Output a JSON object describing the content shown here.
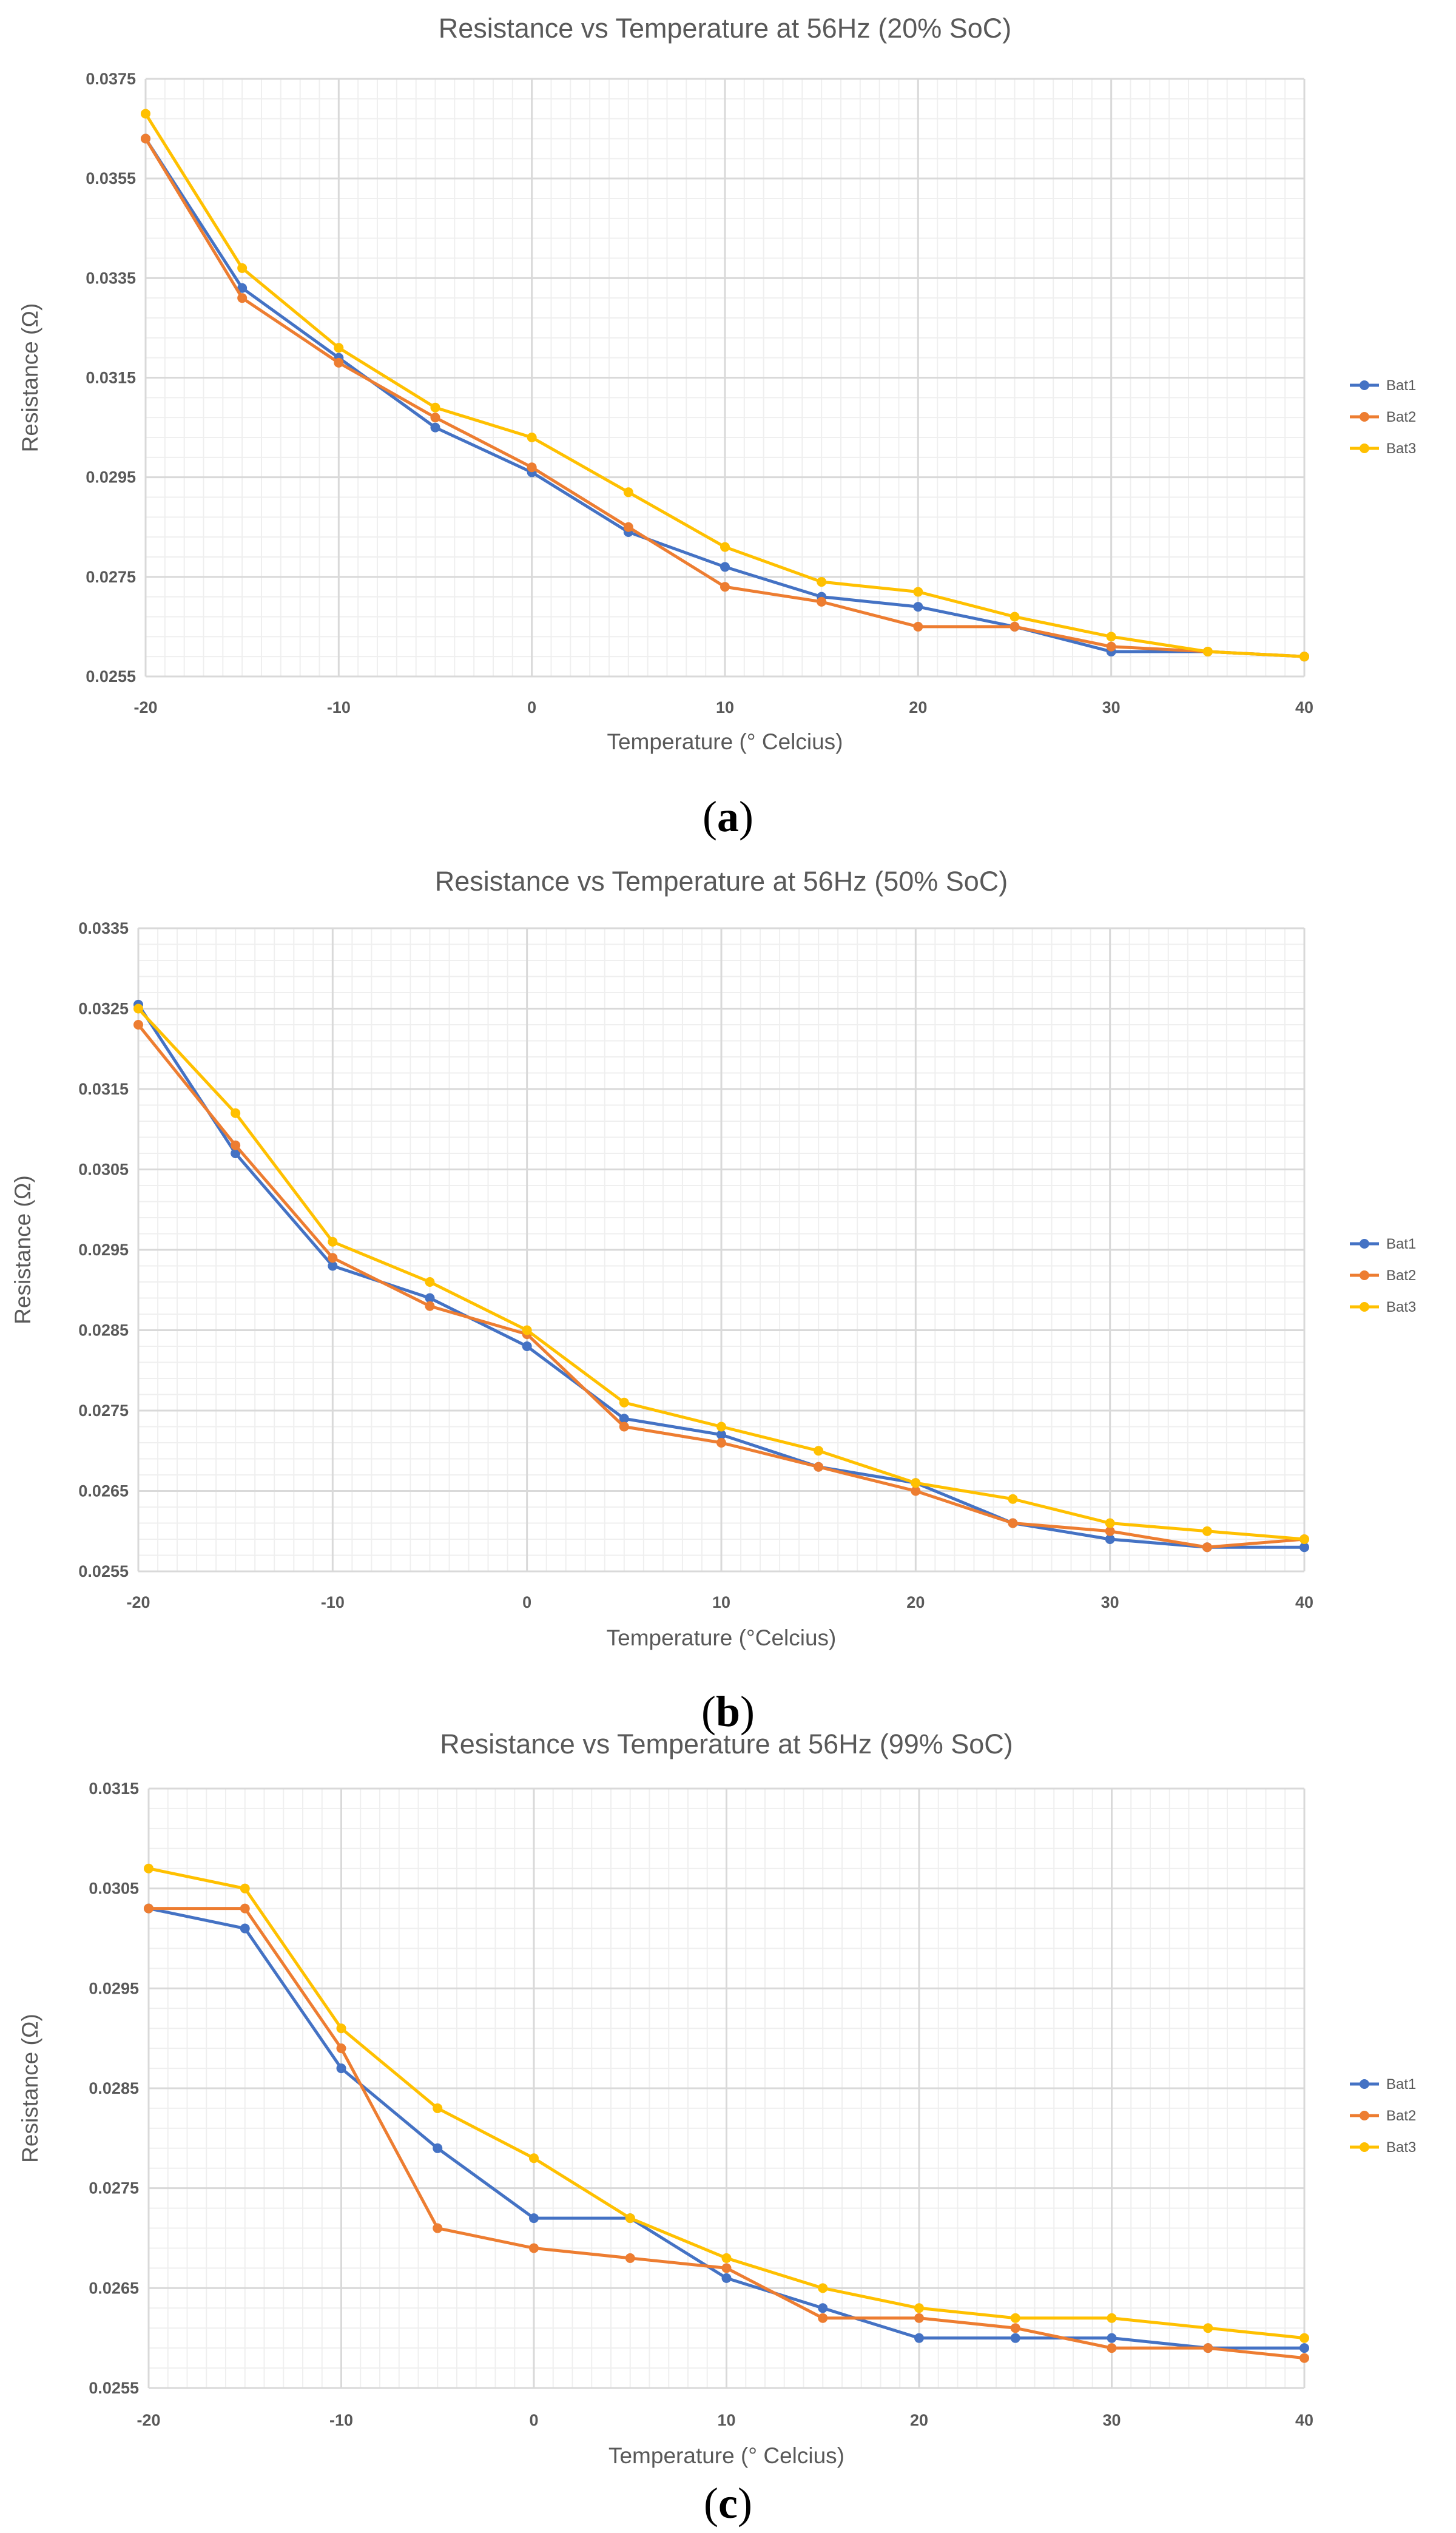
{
  "chart_data": [
    {
      "type": "line",
      "title": "Resistance vs Temperature at 56Hz (20% SoC)",
      "xlabel": "Temperature (° Celcius)",
      "ylabel": "Resistance (Ω)",
      "caption_open": "(",
      "caption_letter": "a",
      "caption_close": ")",
      "x": [
        -20,
        -15,
        -10,
        -5,
        0,
        5,
        10,
        15,
        20,
        25,
        30,
        35,
        40
      ],
      "xlim": [
        -20,
        40
      ],
      "ylim": [
        0.0255,
        0.0375
      ],
      "yticks": [
        "0.0255",
        "0.0275",
        "0.0295",
        "0.0315",
        "0.0335",
        "0.0355",
        "0.0375"
      ],
      "yticks_values": [
        0.0255,
        0.0275,
        0.0295,
        0.0315,
        0.0335,
        0.0355,
        0.0375
      ],
      "xticks": [
        "-20",
        "-10",
        "0",
        "10",
        "20",
        "30",
        "40"
      ],
      "xticks_values": [
        -20,
        -10,
        0,
        10,
        20,
        30,
        40
      ],
      "grid": true,
      "legend_position": "right",
      "series": [
        {
          "name": "Bat1",
          "color": "#4472C4",
          "values": [
            0.0363,
            0.0333,
            0.0319,
            0.0305,
            0.0296,
            0.0284,
            0.0277,
            0.0271,
            0.0269,
            0.0265,
            0.026,
            0.026,
            0.0259
          ]
        },
        {
          "name": "Bat2",
          "color": "#ED7D31",
          "values": [
            0.0363,
            0.0331,
            0.0318,
            0.0307,
            0.0297,
            0.0285,
            0.0273,
            0.027,
            0.0265,
            0.0265,
            0.0261,
            0.026,
            0.0259
          ]
        },
        {
          "name": "Bat3",
          "color": "#FFC000",
          "values": [
            0.0368,
            0.0337,
            0.0321,
            0.0309,
            0.0303,
            0.0292,
            0.0281,
            0.0274,
            0.0272,
            0.0267,
            0.0263,
            0.026,
            0.0259
          ]
        }
      ]
    },
    {
      "type": "line",
      "title": "Resistance vs Temperature at 56Hz (50% SoC)",
      "xlabel": "Temperature (°Celcius)",
      "ylabel": "Resistance (Ω)",
      "caption_open": "(",
      "caption_letter": "b",
      "caption_close": ")",
      "x": [
        -20,
        -15,
        -10,
        -5,
        0,
        5,
        10,
        15,
        20,
        25,
        30,
        35,
        40
      ],
      "xlim": [
        -20,
        40
      ],
      "ylim": [
        0.0255,
        0.0335
      ],
      "yticks": [
        "0.0255",
        "0.0265",
        "0.0275",
        "0.0285",
        "0.0295",
        "0.0305",
        "0.0315",
        "0.0325",
        "0.0335"
      ],
      "yticks_values": [
        0.0255,
        0.0265,
        0.0275,
        0.0285,
        0.0295,
        0.0305,
        0.0315,
        0.0325,
        0.0335
      ],
      "xticks": [
        "-20",
        "-10",
        "0",
        "10",
        "20",
        "30",
        "40"
      ],
      "xticks_values": [
        -20,
        -10,
        0,
        10,
        20,
        30,
        40
      ],
      "grid": true,
      "legend_position": "right",
      "series": [
        {
          "name": "Bat1",
          "color": "#4472C4",
          "values": [
            0.03255,
            0.0307,
            0.0293,
            0.0289,
            0.0283,
            0.0274,
            0.0272,
            0.0268,
            0.0266,
            0.0261,
            0.0259,
            0.0258,
            0.0258
          ]
        },
        {
          "name": "Bat2",
          "color": "#ED7D31",
          "values": [
            0.0323,
            0.0308,
            0.0294,
            0.0288,
            0.02845,
            0.0273,
            0.0271,
            0.0268,
            0.0265,
            0.0261,
            0.026,
            0.0258,
            0.0259
          ]
        },
        {
          "name": "Bat3",
          "color": "#FFC000",
          "values": [
            0.0325,
            0.0312,
            0.0296,
            0.0291,
            0.0285,
            0.0276,
            0.0273,
            0.027,
            0.0266,
            0.0264,
            0.0261,
            0.026,
            0.0259
          ]
        }
      ]
    },
    {
      "type": "line",
      "title": "Resistance vs Temperature at 56Hz (99% SoC)",
      "xlabel": "Temperature (° Celcius)",
      "ylabel": "Resistance (Ω)",
      "caption_open": "(",
      "caption_letter": "c",
      "caption_close": ")",
      "x": [
        -20,
        -15,
        -10,
        -5,
        0,
        5,
        10,
        15,
        20,
        25,
        30,
        35,
        40
      ],
      "xlim": [
        -20,
        40
      ],
      "ylim": [
        0.0255,
        0.0315
      ],
      "yticks": [
        "0.0255",
        "0.0265",
        "0.0275",
        "0.0285",
        "0.0295",
        "0.0305",
        "0.0315"
      ],
      "yticks_values": [
        0.0255,
        0.0265,
        0.0275,
        0.0285,
        0.0295,
        0.0305,
        0.0315
      ],
      "xticks": [
        "-20",
        "-10",
        "0",
        "10",
        "20",
        "30",
        "40"
      ],
      "xticks_values": [
        -20,
        -10,
        0,
        10,
        20,
        30,
        40
      ],
      "grid": true,
      "legend_position": "right",
      "series": [
        {
          "name": "Bat1",
          "color": "#4472C4",
          "values": [
            0.0303,
            0.0301,
            0.0287,
            0.0279,
            0.0272,
            0.0272,
            0.0266,
            0.0263,
            0.026,
            0.026,
            0.026,
            0.0259,
            0.0259
          ]
        },
        {
          "name": "Bat2",
          "color": "#ED7D31",
          "values": [
            0.0303,
            0.0303,
            0.0289,
            0.0271,
            0.0269,
            0.0268,
            0.0267,
            0.0262,
            0.0262,
            0.0261,
            0.0259,
            0.0259,
            0.0258
          ]
        },
        {
          "name": "Bat3",
          "color": "#FFC000",
          "values": [
            0.0307,
            0.0305,
            0.0291,
            0.0283,
            0.0278,
            0.0272,
            0.0268,
            0.0265,
            0.0263,
            0.0262,
            0.0262,
            0.0261,
            0.026
          ]
        }
      ]
    }
  ]
}
